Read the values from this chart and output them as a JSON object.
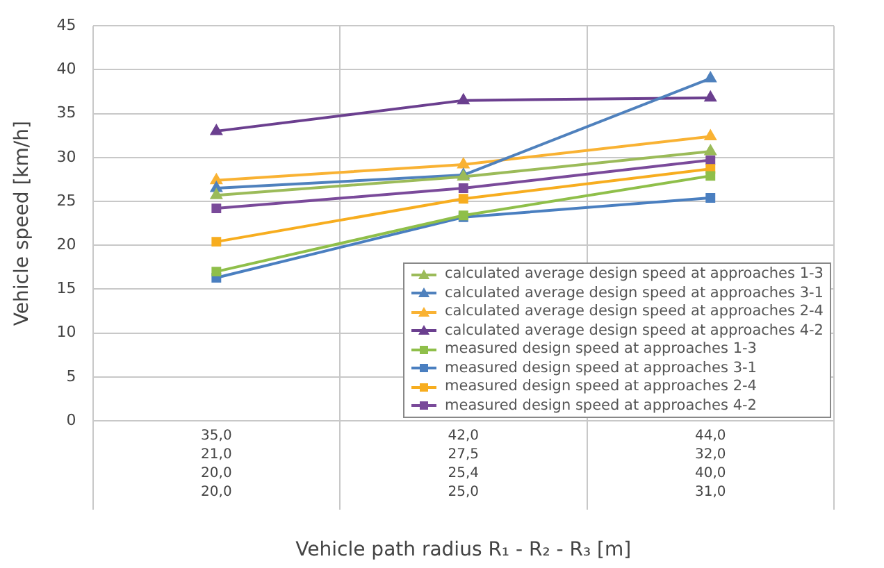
{
  "chart_data": {
    "type": "line",
    "xlabel": "Vehicle path radius R₁ - R₂ - R₃ [m]",
    "ylabel": "Vehicle speed [km/h]",
    "categories": [
      "35,0\n21,0\n20,0\n20,0",
      "42,0\n27,5\n25,4\n25,0",
      "44,0\n32,0\n40,0\n31,0"
    ],
    "ylim": [
      0,
      45
    ],
    "yticks": [
      0,
      5,
      10,
      15,
      20,
      25,
      30,
      35,
      40,
      45
    ],
    "grid": true,
    "legend": "bottom right",
    "line_style": "solid",
    "series": [
      {
        "name": "calculated average design speed at approaches 1-3",
        "color": "#9bbb59",
        "marker": "triangle",
        "values": [
          25.7,
          27.8,
          30.7
        ]
      },
      {
        "name": "calculated average design speed at approaches 3-1",
        "color": "#4f81bd",
        "marker": "triangle",
        "values": [
          26.5,
          28.0,
          39.0
        ]
      },
      {
        "name": "calculated average design speed at approaches 2-4",
        "color": "#f9b233",
        "marker": "triangle",
        "values": [
          27.4,
          29.2,
          32.4
        ]
      },
      {
        "name": "calculated average design speed at approaches 4-2",
        "color": "#6b3f8f",
        "marker": "triangle",
        "values": [
          33.0,
          36.5,
          36.8
        ]
      },
      {
        "name": "measured design speed at approaches 1-3",
        "color": "#8fbf4a",
        "marker": "square",
        "values": [
          17.0,
          23.4,
          27.9
        ]
      },
      {
        "name": "measured design speed at approaches 3-1",
        "color": "#4a7fc0",
        "marker": "square",
        "values": [
          16.3,
          23.2,
          25.4
        ]
      },
      {
        "name": "measured design speed at approaches 2-4",
        "color": "#f7ad1f",
        "marker": "square",
        "values": [
          20.4,
          25.3,
          28.7
        ]
      },
      {
        "name": "measured design speed at approaches 4-2",
        "color": "#7a4a9a",
        "marker": "square",
        "values": [
          24.2,
          26.5,
          29.7
        ]
      }
    ]
  }
}
